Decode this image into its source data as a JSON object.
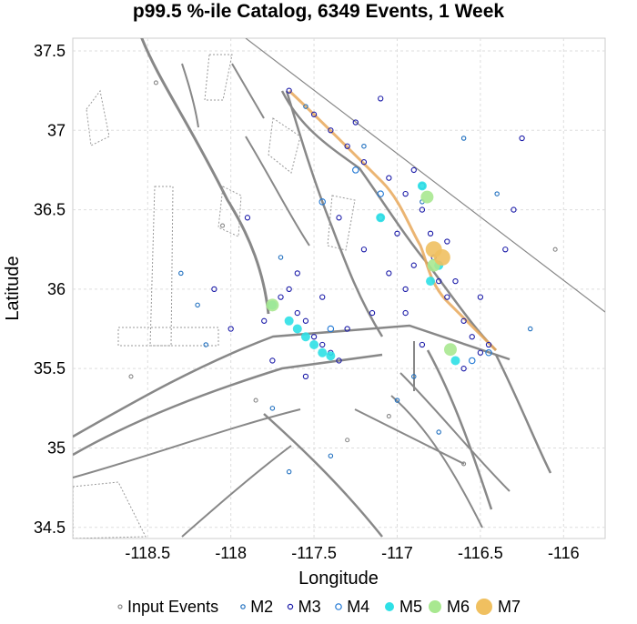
{
  "chart_data": {
    "type": "scatter",
    "title": "p99.5 %-ile Catalog, 6349 Events, 1 Week",
    "xlabel": "Longitude",
    "ylabel": "Latitude",
    "xlim": [
      -118.95,
      -115.75
    ],
    "ylim": [
      34.43,
      37.58
    ],
    "xticks": [
      -118.5,
      -118,
      -117.5,
      -117,
      -116.5,
      -116
    ],
    "xtick_labels": [
      "-118.5",
      "-118",
      "-117.5",
      "-117",
      "-116.5",
      "-116"
    ],
    "yticks": [
      34.5,
      35,
      35.5,
      36,
      36.5,
      37,
      37.5
    ],
    "ytick_labels": [
      "34.5",
      "35",
      "35.5",
      "36",
      "36.5",
      "37",
      "37.5"
    ],
    "grid": true,
    "legend_position": "bottom",
    "series": [
      {
        "name": "Input Events",
        "color": "#888888",
        "fill": false,
        "points": [
          [
            -118.45,
            37.3
          ],
          [
            -118.05,
            36.4
          ],
          [
            -117.85,
            35.3
          ],
          [
            -117.05,
            35.2
          ],
          [
            -116.6,
            34.9
          ],
          [
            -117.3,
            35.05
          ],
          [
            -118.6,
            35.45
          ],
          [
            -116.05,
            36.25
          ]
        ]
      },
      {
        "name": "M2",
        "color": "#1f6fbf",
        "fill": false,
        "points": [
          [
            -117.55,
            37.15
          ],
          [
            -117.2,
            36.9
          ],
          [
            -116.85,
            36.55
          ],
          [
            -116.6,
            36.95
          ],
          [
            -117.7,
            36.2
          ],
          [
            -118.2,
            35.9
          ],
          [
            -117.0,
            35.3
          ],
          [
            -116.2,
            35.75
          ],
          [
            -118.15,
            35.65
          ],
          [
            -117.4,
            34.95
          ],
          [
            -116.9,
            35.45
          ],
          [
            -117.75,
            35.25
          ],
          [
            -116.4,
            36.6
          ],
          [
            -118.3,
            36.1
          ],
          [
            -117.65,
            34.85
          ],
          [
            -116.75,
            35.1
          ]
        ]
      },
      {
        "name": "M3",
        "color": "#1a1aa8",
        "fill": false,
        "points": [
          [
            -117.65,
            37.25
          ],
          [
            -117.5,
            37.1
          ],
          [
            -117.4,
            37.0
          ],
          [
            -117.3,
            36.9
          ],
          [
            -117.2,
            36.8
          ],
          [
            -117.05,
            36.7
          ],
          [
            -116.95,
            36.6
          ],
          [
            -116.85,
            36.5
          ],
          [
            -116.8,
            36.35
          ],
          [
            -116.78,
            36.2
          ],
          [
            -116.75,
            36.05
          ],
          [
            -116.7,
            35.95
          ],
          [
            -116.6,
            35.8
          ],
          [
            -116.55,
            35.7
          ],
          [
            -116.5,
            35.6
          ],
          [
            -117.7,
            35.95
          ],
          [
            -117.6,
            35.85
          ],
          [
            -117.55,
            35.8
          ],
          [
            -117.5,
            35.7
          ],
          [
            -117.45,
            35.65
          ],
          [
            -117.4,
            35.6
          ],
          [
            -117.35,
            35.55
          ],
          [
            -117.65,
            36.0
          ],
          [
            -117.3,
            35.75
          ],
          [
            -117.8,
            35.8
          ],
          [
            -117.25,
            37.05
          ],
          [
            -116.9,
            36.75
          ],
          [
            -116.9,
            36.15
          ],
          [
            -116.7,
            36.3
          ],
          [
            -117.45,
            35.95
          ],
          [
            -117.0,
            36.35
          ],
          [
            -116.3,
            36.5
          ],
          [
            -116.25,
            36.95
          ],
          [
            -117.1,
            37.2
          ],
          [
            -116.65,
            36.05
          ],
          [
            -116.6,
            35.5
          ],
          [
            -117.55,
            35.45
          ],
          [
            -118.0,
            35.75
          ],
          [
            -118.1,
            36.0
          ],
          [
            -116.45,
            35.65
          ],
          [
            -117.15,
            35.85
          ],
          [
            -116.85,
            35.65
          ],
          [
            -117.6,
            36.1
          ],
          [
            -117.2,
            36.25
          ],
          [
            -116.95,
            36.0
          ],
          [
            -117.35,
            36.45
          ],
          [
            -117.75,
            35.55
          ],
          [
            -116.95,
            35.85
          ],
          [
            -116.35,
            36.25
          ],
          [
            -117.9,
            36.45
          ],
          [
            -116.5,
            35.95
          ],
          [
            -117.05,
            36.1
          ]
        ]
      },
      {
        "name": "M4",
        "color": "#1f77d4",
        "fill": false,
        "points": [
          [
            -117.45,
            36.55
          ],
          [
            -117.1,
            36.45
          ],
          [
            -116.45,
            35.6
          ],
          [
            -117.25,
            36.75
          ],
          [
            -116.85,
            36.65
          ],
          [
            -117.4,
            35.75
          ],
          [
            -116.55,
            35.55
          ],
          [
            -117.1,
            36.6
          ]
        ]
      },
      {
        "name": "M5",
        "color": "#2ee0e6",
        "fill": true,
        "points": [
          [
            -116.85,
            36.65
          ],
          [
            -117.1,
            36.45
          ],
          [
            -116.75,
            36.15
          ],
          [
            -116.65,
            35.55
          ],
          [
            -117.75,
            35.9
          ],
          [
            -117.65,
            35.8
          ],
          [
            -117.6,
            35.75
          ],
          [
            -117.55,
            35.7
          ],
          [
            -117.5,
            35.65
          ],
          [
            -117.45,
            35.6
          ],
          [
            -117.4,
            35.58
          ],
          [
            -116.8,
            36.05
          ]
        ]
      },
      {
        "name": "M6",
        "color": "#a8e890",
        "fill": true,
        "points": [
          [
            -116.82,
            36.58
          ],
          [
            -117.75,
            35.9
          ],
          [
            -116.78,
            36.15
          ],
          [
            -116.68,
            35.62
          ]
        ]
      },
      {
        "name": "M7",
        "color": "#f0c060",
        "fill": true,
        "points": [
          [
            -116.73,
            36.2
          ],
          [
            -116.78,
            36.25
          ]
        ]
      }
    ]
  }
}
